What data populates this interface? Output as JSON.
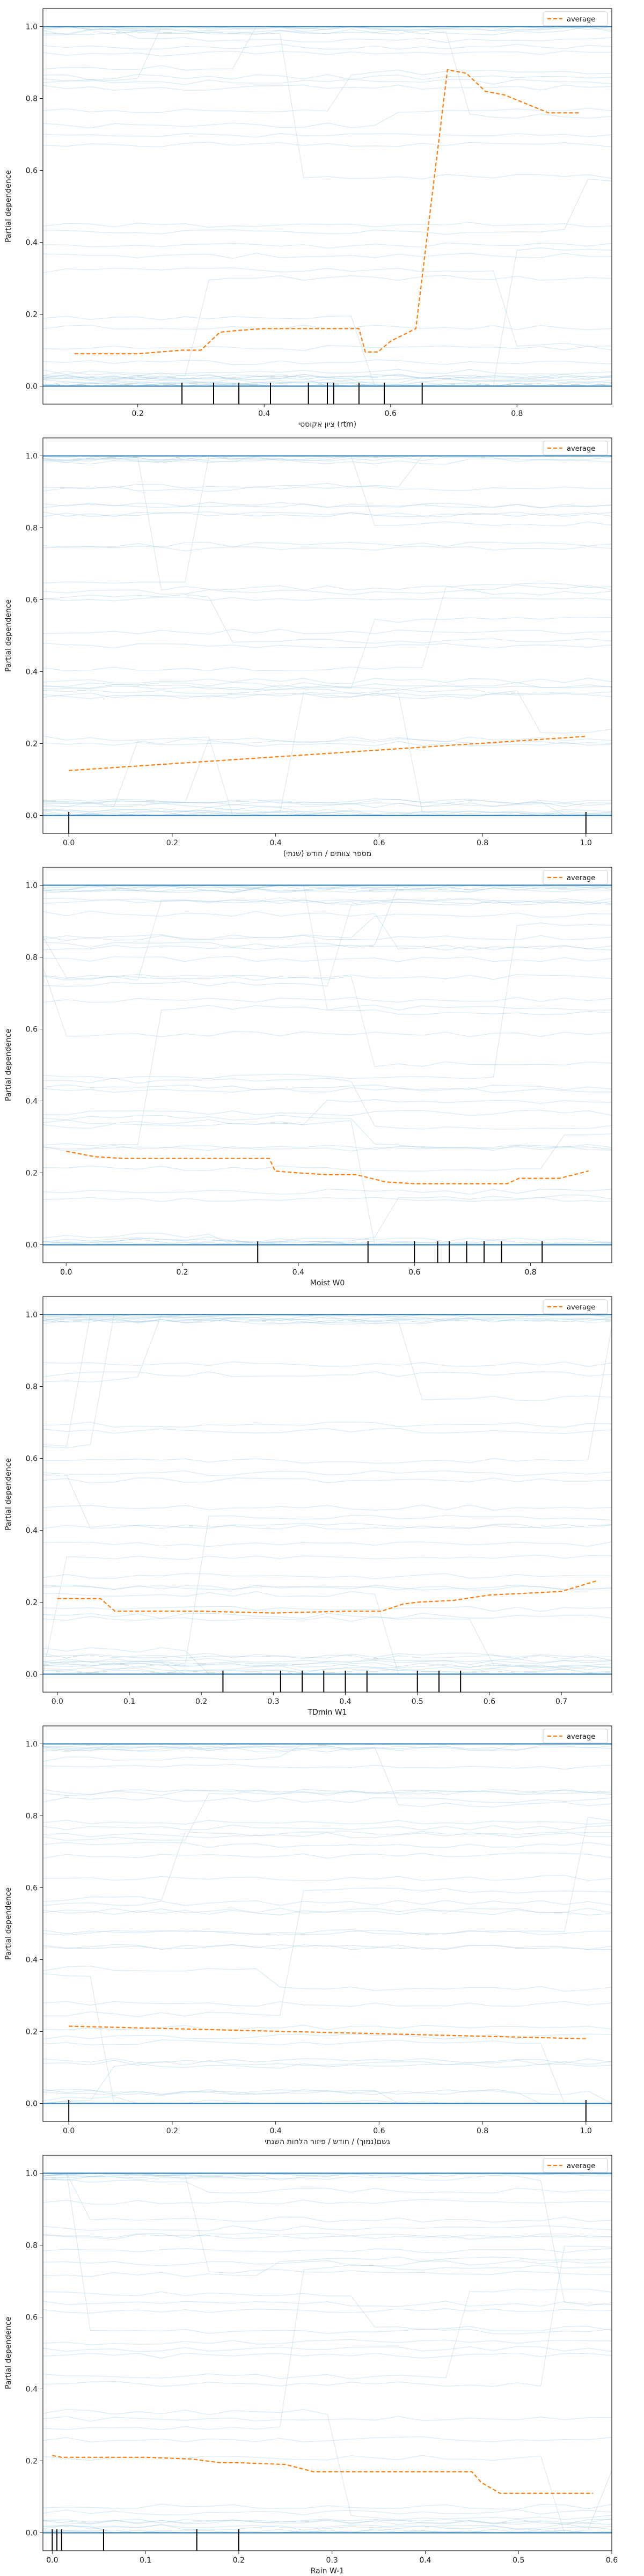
{
  "chart_data": [
    {
      "type": "line",
      "xlabel": "ציון אקוסטי (rtm)",
      "ylabel": "Partial dependence",
      "xlim": [
        0.05,
        0.95
      ],
      "ylim": [
        -0.05,
        1.05
      ],
      "xticks": [
        0.2,
        0.4,
        0.6,
        0.8
      ],
      "xtick_labels": [
        "0.2",
        "0.4",
        "0.6",
        "0.8"
      ],
      "yticks": [
        0.0,
        0.2,
        0.4,
        0.6,
        0.8,
        1.0
      ],
      "ytick_labels": [
        "0.0",
        "0.2",
        "0.4",
        "0.6",
        "0.8",
        "1.0"
      ],
      "legend": "average",
      "legend_position": "top-right",
      "average": {
        "x": [
          0.1,
          0.2,
          0.27,
          0.3,
          0.33,
          0.36,
          0.4,
          0.45,
          0.5,
          0.55,
          0.56,
          0.58,
          0.6,
          0.64,
          0.69,
          0.72,
          0.75,
          0.78,
          0.85,
          0.9
        ],
        "y": [
          0.09,
          0.09,
          0.1,
          0.1,
          0.15,
          0.155,
          0.16,
          0.16,
          0.16,
          0.16,
          0.095,
          0.095,
          0.125,
          0.16,
          0.88,
          0.87,
          0.82,
          0.81,
          0.76,
          0.76
        ]
      },
      "rug": [
        0.27,
        0.32,
        0.36,
        0.41,
        0.47,
        0.5,
        0.51,
        0.55,
        0.59,
        0.65
      ]
    },
    {
      "type": "line",
      "xlabel": "מספר צוותים / חודש (שנתי)",
      "ylabel": "Partial dependence",
      "xlim": [
        -0.05,
        1.05
      ],
      "ylim": [
        -0.05,
        1.05
      ],
      "xticks": [
        0.0,
        0.2,
        0.4,
        0.6,
        0.8,
        1.0
      ],
      "xtick_labels": [
        "0.0",
        "0.2",
        "0.4",
        "0.6",
        "0.8",
        "1.0"
      ],
      "yticks": [
        0.0,
        0.2,
        0.4,
        0.6,
        0.8,
        1.0
      ],
      "ytick_labels": [
        "0.0",
        "0.2",
        "0.4",
        "0.6",
        "0.8",
        "1.0"
      ],
      "legend": "average",
      "legend_position": "top-right",
      "average": {
        "x": [
          0.0,
          1.0
        ],
        "y": [
          0.125,
          0.22
        ]
      },
      "rug": [
        0.0,
        1.0
      ]
    },
    {
      "type": "line",
      "xlabel": "Moist W0",
      "ylabel": "Partial dependence",
      "xlim": [
        -0.04,
        0.94
      ],
      "ylim": [
        -0.05,
        1.05
      ],
      "xticks": [
        0.0,
        0.2,
        0.4,
        0.6,
        0.8
      ],
      "xtick_labels": [
        "0.0",
        "0.2",
        "0.4",
        "0.6",
        "0.8"
      ],
      "yticks": [
        0.0,
        0.2,
        0.4,
        0.6,
        0.8,
        1.0
      ],
      "ytick_labels": [
        "0.0",
        "0.2",
        "0.4",
        "0.6",
        "0.8",
        "1.0"
      ],
      "legend": "average",
      "legend_position": "top-right",
      "average": {
        "x": [
          0.0,
          0.05,
          0.1,
          0.2,
          0.3,
          0.35,
          0.36,
          0.4,
          0.45,
          0.5,
          0.55,
          0.6,
          0.65,
          0.7,
          0.76,
          0.78,
          0.85,
          0.9
        ],
        "y": [
          0.26,
          0.245,
          0.24,
          0.24,
          0.24,
          0.24,
          0.205,
          0.2,
          0.195,
          0.195,
          0.175,
          0.17,
          0.17,
          0.17,
          0.17,
          0.185,
          0.185,
          0.205
        ]
      },
      "rug": [
        0.33,
        0.52,
        0.6,
        0.64,
        0.66,
        0.69,
        0.72,
        0.75,
        0.82
      ]
    },
    {
      "type": "line",
      "xlabel": "TDmin W1",
      "ylabel": "Partial dependence",
      "xlim": [
        -0.02,
        0.77
      ],
      "ylim": [
        -0.05,
        1.05
      ],
      "xticks": [
        0.0,
        0.1,
        0.2,
        0.3,
        0.4,
        0.5,
        0.6,
        0.7
      ],
      "xtick_labels": [
        "0.0",
        "0.1",
        "0.2",
        "0.3",
        "0.4",
        "0.5",
        "0.6",
        "0.7"
      ],
      "yticks": [
        0.0,
        0.2,
        0.4,
        0.6,
        0.8,
        1.0
      ],
      "ytick_labels": [
        "0.0",
        "0.2",
        "0.4",
        "0.6",
        "0.8",
        "1.0"
      ],
      "legend": "average",
      "legend_position": "top-right",
      "average": {
        "x": [
          0.0,
          0.06,
          0.08,
          0.2,
          0.3,
          0.4,
          0.45,
          0.48,
          0.5,
          0.55,
          0.6,
          0.65,
          0.7,
          0.75
        ],
        "y": [
          0.21,
          0.21,
          0.175,
          0.175,
          0.17,
          0.175,
          0.175,
          0.195,
          0.2,
          0.205,
          0.22,
          0.225,
          0.23,
          0.26
        ]
      },
      "rug": [
        0.23,
        0.31,
        0.34,
        0.37,
        0.4,
        0.43,
        0.5,
        0.53,
        0.56
      ]
    },
    {
      "type": "line",
      "xlabel": "גשם(נמוך) / חודש / פיזור הלחות השנתי",
      "ylabel": "Partial dependence",
      "xlim": [
        -0.05,
        1.05
      ],
      "ylim": [
        -0.05,
        1.05
      ],
      "xticks": [
        0.0,
        0.2,
        0.4,
        0.6,
        0.8,
        1.0
      ],
      "xtick_labels": [
        "0.0",
        "0.2",
        "0.4",
        "0.6",
        "0.8",
        "1.0"
      ],
      "yticks": [
        0.0,
        0.2,
        0.4,
        0.6,
        0.8,
        1.0
      ],
      "ytick_labels": [
        "0.0",
        "0.2",
        "0.4",
        "0.6",
        "0.8",
        "1.0"
      ],
      "legend": "average",
      "legend_position": "top-right",
      "average": {
        "x": [
          0.0,
          1.0
        ],
        "y": [
          0.215,
          0.18
        ]
      },
      "rug": [
        0.0,
        1.0
      ]
    },
    {
      "type": "line",
      "xlabel": "Rain W-1",
      "ylabel": "Partial dependence",
      "xlim": [
        -0.01,
        0.6
      ],
      "ylim": [
        -0.05,
        1.05
      ],
      "xticks": [
        0.0,
        0.1,
        0.2,
        0.3,
        0.4,
        0.5,
        0.6
      ],
      "xtick_labels": [
        "0.0",
        "0.1",
        "0.2",
        "0.3",
        "0.4",
        "0.5",
        "0.6"
      ],
      "yticks": [
        0.0,
        0.2,
        0.4,
        0.6,
        0.8,
        1.0
      ],
      "ytick_labels": [
        "0.0",
        "0.2",
        "0.4",
        "0.6",
        "0.8",
        "1.0"
      ],
      "legend": "average",
      "legend_position": "top-right",
      "average": {
        "x": [
          0.0,
          0.01,
          0.05,
          0.1,
          0.15,
          0.18,
          0.2,
          0.25,
          0.28,
          0.35,
          0.45,
          0.46,
          0.48,
          0.5,
          0.58
        ],
        "y": [
          0.215,
          0.21,
          0.21,
          0.21,
          0.205,
          0.195,
          0.195,
          0.19,
          0.17,
          0.17,
          0.17,
          0.14,
          0.11,
          0.11,
          0.11
        ]
      },
      "rug": [
        0.0,
        0.005,
        0.01,
        0.055,
        0.155,
        0.2
      ]
    }
  ],
  "colors": {
    "ice_line": "#a6cee3",
    "ice_base": "#1f77b4",
    "average": "#ff7f0e",
    "rug": "#000000"
  }
}
